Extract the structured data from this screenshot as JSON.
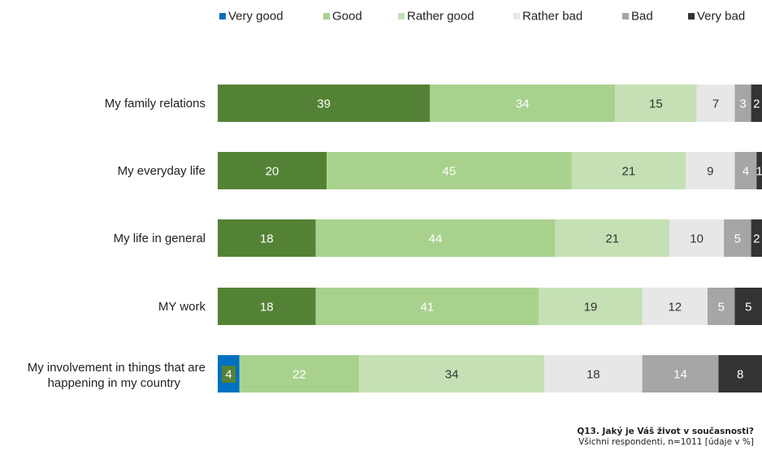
{
  "chart_data": {
    "type": "bar",
    "orientation": "horizontal",
    "stacked": true,
    "percent": true,
    "legend_position": "top-right",
    "grid": false,
    "xlim": [
      0,
      100
    ],
    "categories": [
      "My family relations",
      "My everyday life",
      "My life in general",
      "MY work",
      "My involvement in things that are happening in my country"
    ],
    "series": [
      {
        "name": "Very good",
        "color": "#0070C0",
        "values": [
          39,
          20,
          18,
          18,
          4
        ]
      },
      {
        "name": "Good",
        "color": "#A9D18E",
        "values": [
          34,
          45,
          44,
          41,
          22
        ]
      },
      {
        "name": "Rather good",
        "color": "#C5E0B4",
        "values": [
          15,
          21,
          21,
          19,
          34
        ]
      },
      {
        "name": "Rather bad",
        "color": "#E7E7E7",
        "values": [
          7,
          9,
          10,
          12,
          18
        ]
      },
      {
        "name": "Bad",
        "color": "#A6A6A6",
        "values": [
          3,
          4,
          5,
          5,
          14
        ]
      },
      {
        "name": "Very bad",
        "color": "#333333",
        "values": [
          2,
          1,
          2,
          5,
          8
        ]
      }
    ],
    "colors": {
      "very_good_bar_fill": "#548235",
      "very_good_legend": "#0070C0"
    }
  },
  "footnote": {
    "question": "Q13. Jaký je Váš život v současnosti?",
    "sample": "Všichni respondenti, n=1011 [údaje v %]"
  }
}
